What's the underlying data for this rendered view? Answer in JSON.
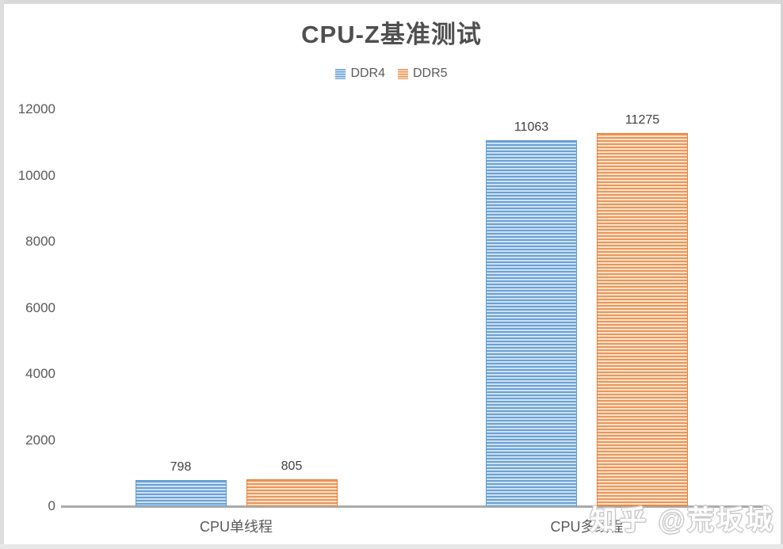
{
  "chart_data": {
    "type": "bar",
    "title": "CPU-Z基准测试",
    "categories": [
      "CPU单线程",
      "CPU多线程"
    ],
    "series": [
      {
        "name": "DDR4",
        "values": [
          798,
          11063
        ],
        "color": "#5B9BD5",
        "stripe_dark": "#6BA1D6",
        "stripe_light": "#CFE1F2",
        "border_color": "#5B9BD5"
      },
      {
        "name": "DDR5",
        "values": [
          805,
          11275
        ],
        "color": "#ED7D31",
        "stripe_dark": "#EC9659",
        "stripe_light": "#F8E2CC",
        "border_color": "#ED7D31"
      }
    ],
    "data_labels": [
      [
        "798",
        "11063"
      ],
      [
        "805",
        "11275"
      ]
    ],
    "y_ticks": [
      "0",
      "2000",
      "4000",
      "6000",
      "8000",
      "10000",
      "12000"
    ],
    "ylim": [
      0,
      12000
    ],
    "grid": false,
    "legend_position": "top",
    "bar_fill_pattern": "horizontal-stripes",
    "axis_line_color": "#ababab",
    "text_color": "#595959"
  },
  "watermark": {
    "text": "知乎 @荒坂城"
  }
}
